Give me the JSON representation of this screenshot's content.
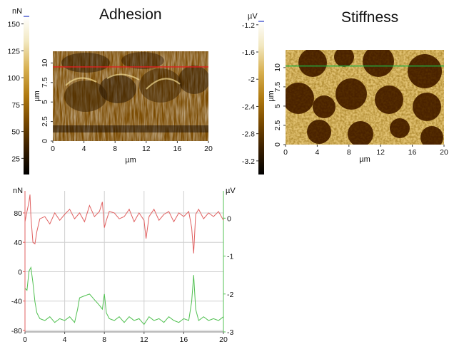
{
  "chart_data": [
    {
      "type": "heatmap",
      "title": "Adhesion",
      "xlabel": "µm",
      "ylabel": "µm",
      "x_ticks": [
        "0",
        "4",
        "8",
        "12",
        "16",
        "20"
      ],
      "y_ticks": [
        "0",
        "2.5",
        "5",
        "7.5",
        "10"
      ],
      "x_range": [
        0,
        20
      ],
      "y_range": [
        0,
        11.5
      ],
      "scan_line_y": 9.5,
      "scan_line_color": "#e02020",
      "colorbar": {
        "unit": "nN",
        "ticks": [
          "150",
          "125",
          "100",
          "75",
          "50",
          "25"
        ],
        "tick_values": [
          150,
          125,
          100,
          75,
          50,
          25
        ],
        "range": [
          10,
          157
        ]
      },
      "palette": [
        "#000000",
        "#3a1f00",
        "#7a4a00",
        "#b07a10",
        "#d8b050",
        "#f2e8c0",
        "#ffffff"
      ]
    },
    {
      "type": "heatmap",
      "title": "Stiffness",
      "xlabel": "µm",
      "ylabel": "µm",
      "x_ticks": [
        "0",
        "4",
        "8",
        "12",
        "16",
        "20"
      ],
      "y_ticks": [
        "0",
        "2.5",
        "5",
        "7.5",
        "10"
      ],
      "x_range": [
        0,
        20
      ],
      "y_range": [
        0,
        12.3
      ],
      "scan_line_y": 10.2,
      "scan_line_color": "#20b040",
      "colorbar": {
        "unit": "µV",
        "ticks": [
          "-1.2",
          "-1.6",
          "-2",
          "-2.4",
          "-2.8",
          "-3.2"
        ],
        "tick_values": [
          -1.2,
          -1.6,
          -2.0,
          -2.4,
          -2.8,
          -3.2
        ],
        "range": [
          -3.4,
          -1.15
        ]
      },
      "palette": [
        "#000000",
        "#3a1f00",
        "#7a4a00",
        "#b07a10",
        "#d8b050",
        "#f2e8c0",
        "#ffffff"
      ]
    },
    {
      "type": "line",
      "title": "",
      "xlabel": "",
      "x_ticks": [
        "0",
        "4",
        "8",
        "12",
        "16",
        "20"
      ],
      "xlim": [
        0,
        20
      ],
      "grid": true,
      "left_axis": {
        "unit": "nN",
        "ticks": [
          "80",
          "40",
          "0",
          "-40",
          "-80"
        ],
        "tick_values": [
          80,
          40,
          0,
          -40,
          -80
        ],
        "ylim": [
          -82,
          110
        ]
      },
      "right_axis": {
        "unit": "µV",
        "ticks": [
          "0",
          "-1",
          "-2",
          "-3"
        ],
        "tick_values": [
          0,
          -1,
          -2,
          -3
        ],
        "ylim": [
          -3.0,
          0.72
        ]
      },
      "series": [
        {
          "axis": "left",
          "color": "#e06060",
          "x": [
            0,
            0.2,
            0.4,
            0.5,
            0.6,
            0.8,
            1.0,
            1.2,
            1.5,
            2.0,
            2.5,
            3.0,
            3.5,
            4.0,
            4.5,
            5.0,
            5.5,
            6.0,
            6.5,
            7.0,
            7.5,
            7.8,
            8.0,
            8.2,
            8.5,
            9.0,
            9.5,
            10.0,
            10.5,
            11.0,
            11.5,
            12.0,
            12.2,
            12.5,
            13.0,
            13.5,
            14.0,
            14.5,
            15.0,
            15.5,
            16.0,
            16.5,
            16.8,
            17.0,
            17.2,
            17.5,
            18.0,
            18.5,
            19.0,
            19.5,
            20.0
          ],
          "y": [
            68,
            82,
            95,
            105,
            75,
            40,
            38,
            55,
            72,
            75,
            65,
            80,
            70,
            78,
            85,
            72,
            80,
            68,
            90,
            75,
            82,
            95,
            60,
            70,
            82,
            80,
            72,
            75,
            85,
            68,
            80,
            70,
            45,
            75,
            85,
            70,
            78,
            82,
            68,
            80,
            75,
            82,
            60,
            25,
            78,
            85,
            72,
            80,
            75,
            82,
            70
          ]
        },
        {
          "axis": "right",
          "color": "#50c050",
          "x": [
            0,
            0.2,
            0.4,
            0.6,
            0.8,
            1.0,
            1.2,
            1.5,
            2.0,
            2.5,
            3.0,
            3.5,
            4.0,
            4.5,
            5.0,
            5.3,
            5.5,
            6.0,
            6.5,
            7.0,
            7.5,
            7.8,
            8.0,
            8.2,
            8.5,
            9.0,
            9.5,
            10.0,
            10.5,
            11.0,
            11.5,
            12.0,
            12.5,
            13.0,
            13.5,
            14.0,
            14.5,
            15.0,
            15.5,
            16.0,
            16.5,
            16.8,
            17.0,
            17.2,
            17.5,
            18.0,
            18.5,
            19.0,
            19.5,
            20.0
          ],
          "y": [
            -1.85,
            -1.9,
            -1.4,
            -1.3,
            -1.7,
            -2.2,
            -2.5,
            -2.65,
            -2.7,
            -2.6,
            -2.75,
            -2.65,
            -2.7,
            -2.6,
            -2.75,
            -2.4,
            -2.1,
            -2.05,
            -2.0,
            -2.15,
            -2.3,
            -2.4,
            -2.0,
            -2.5,
            -2.65,
            -2.7,
            -2.6,
            -2.75,
            -2.6,
            -2.7,
            -2.65,
            -2.8,
            -2.6,
            -2.7,
            -2.65,
            -2.75,
            -2.6,
            -2.7,
            -2.75,
            -2.65,
            -2.7,
            -2.2,
            -1.5,
            -2.4,
            -2.7,
            -2.6,
            -2.7,
            -2.65,
            -2.7,
            -2.6
          ]
        }
      ]
    }
  ]
}
